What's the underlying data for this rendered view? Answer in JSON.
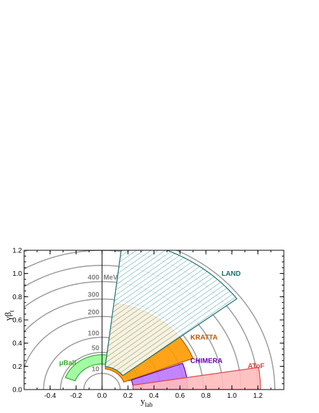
{
  "chart_data": {
    "type": "diagram",
    "x_axis": {
      "label_main": "y",
      "label_sub": "lab",
      "range": [
        -0.6,
        1.4
      ],
      "ticks": [
        -0.4,
        -0.2,
        0.0,
        0.2,
        0.4,
        0.6,
        0.8,
        1.0,
        1.2
      ],
      "tick_labels": [
        "-0.4",
        "-0.2",
        "0.0",
        "0.2",
        "0.4",
        "0.6",
        "0.8",
        "1.0",
        "1.2"
      ]
    },
    "y_axis": {
      "label_main": "γβ",
      "label_sub": "t",
      "range": [
        0.0,
        1.2
      ],
      "ticks": [
        0.0,
        0.2,
        0.4,
        0.6,
        0.8,
        1.0,
        1.2
      ],
      "tick_labels": [
        "0.0",
        "0.2",
        "0.4",
        "0.6",
        "0.8",
        "1.0",
        "1.2"
      ]
    },
    "center_y": 0.0,
    "energy_unit": "MeV",
    "energy_circles": [
      {
        "energy": 10,
        "label": "10",
        "radius": 0.14
      },
      {
        "energy": 50,
        "label": "50",
        "radius": 0.32
      },
      {
        "energy": 100,
        "label": "100",
        "radius": 0.45
      },
      {
        "energy": 200,
        "label": "200",
        "radius": 0.63
      },
      {
        "energy": 300,
        "label": "300",
        "radius": 0.78
      },
      {
        "energy": 400,
        "label": "400",
        "radius": 0.93
      },
      {
        "radius": 1.07
      },
      {
        "radius": 1.2
      },
      {
        "radius": 1.33
      }
    ],
    "detectors": [
      {
        "name": "μBall",
        "color": "#33aa33",
        "fill": "#98fb98",
        "theta_deg": [
          20,
          160
        ],
        "r": [
          0.22,
          0.3
        ]
      },
      {
        "name": "KRATTA",
        "color": "#bb5500",
        "fill": "#ff9900",
        "theta_deg": [
          21,
          82
        ],
        "r": [
          0.18,
          0.75
        ]
      },
      {
        "name": "LAND",
        "color": "#1a6b6b",
        "fill": "#aad4d4",
        "theta_deg": [
          37,
          83
        ],
        "r": [
          0.2,
          1.3
        ]
      },
      {
        "name": "CHIMERA",
        "color": "#6600aa",
        "fill": "#bb77ff",
        "theta_deg": [
          1,
          20
        ],
        "r": [
          0.24,
          0.66
        ]
      },
      {
        "name": "AToF",
        "color": "#e04040",
        "fill": "#ffbbbb",
        "theta_deg": [
          0,
          9
        ],
        "r": [
          0.24,
          1.22
        ]
      }
    ],
    "grid": false,
    "legend": "none"
  }
}
